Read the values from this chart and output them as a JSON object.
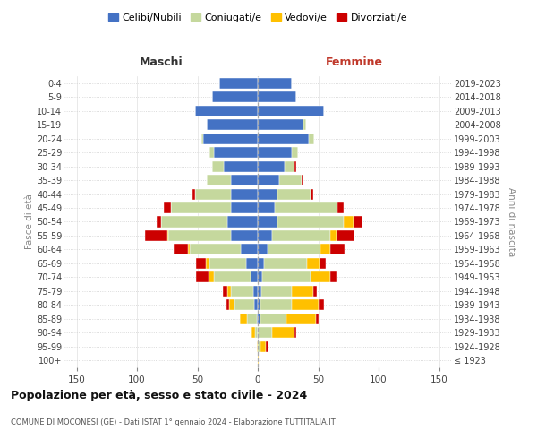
{
  "age_groups": [
    "100+",
    "95-99",
    "90-94",
    "85-89",
    "80-84",
    "75-79",
    "70-74",
    "65-69",
    "60-64",
    "55-59",
    "50-54",
    "45-49",
    "40-44",
    "35-39",
    "30-34",
    "25-29",
    "20-24",
    "15-19",
    "10-14",
    "5-9",
    "0-4"
  ],
  "birth_years": [
    "≤ 1923",
    "1924-1928",
    "1929-1933",
    "1934-1938",
    "1939-1943",
    "1944-1948",
    "1949-1953",
    "1954-1958",
    "1959-1963",
    "1964-1968",
    "1969-1973",
    "1974-1978",
    "1979-1983",
    "1984-1988",
    "1989-1993",
    "1994-1998",
    "1999-2003",
    "2004-2008",
    "2009-2013",
    "2014-2018",
    "2019-2023"
  ],
  "colors": {
    "celibi": "#4472c4",
    "coniugati": "#c5d89d",
    "vedovi": "#ffc000",
    "divorziati": "#cc0000"
  },
  "maschi": {
    "celibi": [
      0,
      0,
      0,
      1,
      3,
      4,
      6,
      10,
      14,
      22,
      25,
      22,
      22,
      22,
      28,
      36,
      45,
      42,
      52,
      38,
      32
    ],
    "coniugati": [
      0,
      0,
      2,
      8,
      16,
      18,
      30,
      30,
      42,
      52,
      55,
      50,
      30,
      20,
      10,
      4,
      2,
      0,
      0,
      0,
      0
    ],
    "vedovi": [
      0,
      1,
      3,
      6,
      5,
      3,
      5,
      3,
      2,
      1,
      0,
      0,
      0,
      0,
      0,
      0,
      0,
      0,
      0,
      0,
      0
    ],
    "divorziati": [
      0,
      0,
      0,
      0,
      2,
      4,
      10,
      8,
      12,
      18,
      4,
      6,
      2,
      0,
      0,
      0,
      0,
      0,
      0,
      0,
      0
    ]
  },
  "femmine": {
    "celibi": [
      0,
      0,
      0,
      2,
      2,
      3,
      4,
      5,
      8,
      12,
      16,
      14,
      16,
      18,
      22,
      28,
      42,
      38,
      55,
      32,
      28
    ],
    "coniugati": [
      0,
      2,
      12,
      22,
      26,
      25,
      40,
      36,
      44,
      48,
      55,
      52,
      28,
      18,
      8,
      5,
      5,
      2,
      0,
      0,
      0
    ],
    "vedovi": [
      1,
      5,
      18,
      24,
      22,
      18,
      16,
      10,
      8,
      5,
      8,
      0,
      0,
      0,
      0,
      0,
      0,
      0,
      0,
      0,
      0
    ],
    "divorziati": [
      0,
      2,
      2,
      2,
      5,
      3,
      5,
      5,
      12,
      15,
      8,
      5,
      2,
      2,
      2,
      0,
      0,
      0,
      0,
      0,
      0
    ]
  },
  "xlim": 160,
  "title": "Popolazione per età, sesso e stato civile - 2024",
  "subtitle": "COMUNE DI MOCONESI (GE) - Dati ISTAT 1° gennaio 2024 - Elaborazione TUTTITALIA.IT",
  "xlabel_left": "Maschi",
  "xlabel_right": "Femmine",
  "ylabel_left": "Fasce di età",
  "ylabel_right": "Anni di nascita",
  "legend_labels": [
    "Celibi/Nubili",
    "Coniugati/e",
    "Vedovi/e",
    "Divorziati/e"
  ],
  "background_color": "#ffffff",
  "grid_color": "#cccccc",
  "xticks": [
    -150,
    -100,
    -50,
    0,
    50,
    100,
    150
  ]
}
